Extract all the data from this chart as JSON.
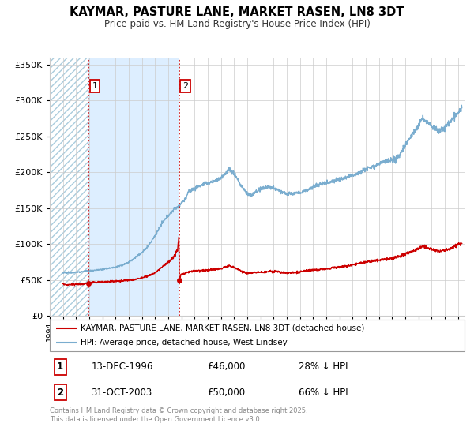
{
  "title": "KAYMAR, PASTURE LANE, MARKET RASEN, LN8 3DT",
  "subtitle": "Price paid vs. HM Land Registry's House Price Index (HPI)",
  "legend_line1": "KAYMAR, PASTURE LANE, MARKET RASEN, LN8 3DT (detached house)",
  "legend_line2": "HPI: Average price, detached house, West Lindsey",
  "sale1_date": "13-DEC-1996",
  "sale1_price": "£46,000",
  "sale1_hpi": "28% ↓ HPI",
  "sale1_year": 1996.96,
  "sale1_value": 46000,
  "sale2_date": "31-OCT-2003",
  "sale2_price": "£50,000",
  "sale2_hpi": "66% ↓ HPI",
  "sale2_year": 2003.83,
  "sale2_value": 50000,
  "red_color": "#cc0000",
  "blue_color": "#7aadcf",
  "shaded_region_color": "#ddeeff",
  "grid_color": "#cccccc",
  "footnote": "Contains HM Land Registry data © Crown copyright and database right 2025.\nThis data is licensed under the Open Government Licence v3.0.",
  "ylim": [
    0,
    360000
  ],
  "xlim_start": 1994.0,
  "xlim_end": 2025.5,
  "ytick_interval": 50000
}
